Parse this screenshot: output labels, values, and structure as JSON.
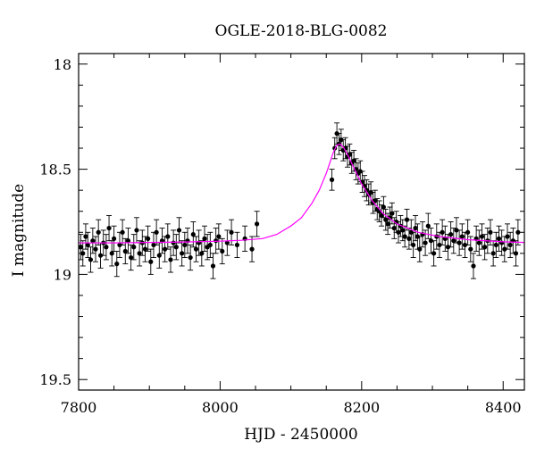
{
  "chart_data": {
    "type": "scatter",
    "title": "OGLE-2018-BLG-0082",
    "xlabel": "HJD - 2450000",
    "ylabel": "I magnitude",
    "xlim": [
      7800,
      8430
    ],
    "ylim": [
      19.55,
      17.95
    ],
    "y_inverted": true,
    "grid": false,
    "xticks": [
      7800,
      8000,
      8200,
      8400
    ],
    "yticks": [
      18,
      18.5,
      19,
      19.5
    ],
    "xtick_labels": [
      "7800",
      "8000",
      "8200",
      "8400"
    ],
    "ytick_labels": [
      "18",
      "18.5",
      "19",
      "19.5"
    ],
    "model_color": "#ff00ff",
    "point_color": "#000000",
    "model": {
      "x": [
        7800,
        7850,
        7900,
        7950,
        8000,
        8030,
        8060,
        8080,
        8100,
        8115,
        8130,
        8140,
        8150,
        8155,
        8160,
        8165,
        8170,
        8175,
        8180,
        8190,
        8200,
        8215,
        8230,
        8250,
        8280,
        8310,
        8350,
        8400,
        8430
      ],
      "y": [
        18.85,
        18.85,
        18.848,
        18.846,
        18.842,
        18.838,
        18.83,
        18.81,
        18.77,
        18.73,
        18.66,
        18.6,
        18.52,
        18.47,
        18.42,
        18.385,
        18.38,
        18.4,
        18.43,
        18.5,
        18.57,
        18.65,
        18.71,
        18.76,
        18.8,
        18.82,
        18.835,
        18.845,
        18.848
      ]
    },
    "points": {
      "x": [
        7803,
        7806,
        7810,
        7813,
        7817,
        7820,
        7824,
        7828,
        7831,
        7835,
        7839,
        7843,
        7847,
        7850,
        7854,
        7858,
        7862,
        7866,
        7870,
        7874,
        7878,
        7882,
        7886,
        7890,
        7894,
        7898,
        7902,
        7906,
        7910,
        7914,
        7918,
        7922,
        7926,
        7930,
        7934,
        7938,
        7942,
        7946,
        7950,
        7954,
        7958,
        7962,
        7966,
        7970,
        7974,
        7978,
        7982,
        7986,
        7990,
        7994,
        7998,
        8003,
        8010,
        8016,
        8024,
        8035,
        8045,
        8052,
        8158,
        8162,
        8165,
        8168,
        8171,
        8174,
        8177,
        8180,
        8183,
        8186,
        8189,
        8192,
        8195,
        8198,
        8201,
        8204,
        8207,
        8210,
        8213,
        8216,
        8219,
        8222,
        8225,
        8228,
        8231,
        8234,
        8237,
        8240,
        8243,
        8246,
        8249,
        8252,
        8255,
        8258,
        8261,
        8264,
        8267,
        8270,
        8273,
        8276,
        8279,
        8282,
        8286,
        8290,
        8294,
        8298,
        8302,
        8306,
        8310,
        8314,
        8318,
        8322,
        8326,
        8330,
        8334,
        8338,
        8342,
        8346,
        8350,
        8354,
        8358,
        8362,
        8366,
        8370,
        8374,
        8378,
        8382,
        8386,
        8390,
        8394,
        8398,
        8402,
        8406,
        8410,
        8414,
        8418,
        8421
      ],
      "y": [
        18.87,
        18.9,
        18.82,
        18.86,
        18.93,
        18.84,
        18.88,
        18.8,
        18.91,
        18.85,
        18.87,
        18.78,
        18.9,
        18.83,
        18.95,
        18.86,
        18.8,
        18.89,
        18.84,
        18.92,
        18.87,
        18.79,
        18.9,
        18.85,
        18.88,
        18.83,
        18.94,
        18.86,
        18.8,
        18.91,
        18.84,
        18.88,
        18.82,
        18.93,
        18.85,
        18.87,
        18.79,
        18.9,
        18.86,
        18.84,
        18.92,
        18.81,
        18.88,
        18.85,
        18.9,
        18.83,
        18.87,
        18.86,
        18.96,
        18.84,
        18.82,
        18.89,
        18.85,
        18.8,
        18.86,
        18.83,
        18.88,
        18.76,
        18.55,
        18.4,
        18.33,
        18.38,
        18.36,
        18.41,
        18.4,
        18.44,
        18.43,
        18.47,
        18.46,
        18.5,
        18.52,
        18.51,
        18.56,
        18.58,
        18.6,
        18.62,
        18.61,
        18.66,
        18.65,
        18.69,
        18.7,
        18.72,
        18.68,
        18.74,
        18.76,
        18.73,
        18.71,
        18.78,
        18.75,
        18.8,
        18.77,
        18.79,
        18.82,
        18.74,
        18.83,
        18.8,
        18.86,
        18.78,
        18.82,
        18.88,
        18.81,
        18.85,
        18.77,
        18.84,
        18.9,
        18.82,
        18.86,
        18.8,
        18.83,
        18.87,
        18.81,
        18.84,
        18.79,
        18.85,
        18.82,
        18.86,
        18.8,
        18.88,
        18.96,
        18.83,
        18.85,
        18.82,
        18.87,
        18.84,
        18.8,
        18.9,
        18.86,
        18.83,
        18.85,
        18.88,
        18.82,
        18.86,
        18.84,
        18.9,
        18.8
      ],
      "err": [
        0.06,
        0.06,
        0.06,
        0.06,
        0.06,
        0.06,
        0.06,
        0.06,
        0.06,
        0.06,
        0.06,
        0.06,
        0.06,
        0.06,
        0.06,
        0.06,
        0.06,
        0.06,
        0.06,
        0.06,
        0.06,
        0.06,
        0.06,
        0.06,
        0.06,
        0.06,
        0.06,
        0.06,
        0.06,
        0.06,
        0.06,
        0.06,
        0.06,
        0.06,
        0.06,
        0.06,
        0.06,
        0.06,
        0.06,
        0.06,
        0.06,
        0.06,
        0.06,
        0.06,
        0.06,
        0.06,
        0.06,
        0.06,
        0.06,
        0.06,
        0.06,
        0.06,
        0.06,
        0.06,
        0.06,
        0.06,
        0.06,
        0.06,
        0.05,
        0.05,
        0.05,
        0.05,
        0.05,
        0.05,
        0.05,
        0.05,
        0.05,
        0.05,
        0.05,
        0.05,
        0.05,
        0.05,
        0.05,
        0.05,
        0.05,
        0.05,
        0.05,
        0.05,
        0.05,
        0.05,
        0.05,
        0.05,
        0.05,
        0.05,
        0.05,
        0.05,
        0.05,
        0.05,
        0.05,
        0.05,
        0.05,
        0.05,
        0.05,
        0.05,
        0.05,
        0.06,
        0.06,
        0.06,
        0.06,
        0.06,
        0.06,
        0.06,
        0.06,
        0.06,
        0.06,
        0.06,
        0.06,
        0.06,
        0.06,
        0.06,
        0.06,
        0.06,
        0.06,
        0.06,
        0.06,
        0.06,
        0.06,
        0.06,
        0.06,
        0.06,
        0.06,
        0.06,
        0.06,
        0.06,
        0.06,
        0.06,
        0.06,
        0.06,
        0.06,
        0.06,
        0.06,
        0.06,
        0.06,
        0.06,
        0.06
      ]
    }
  }
}
